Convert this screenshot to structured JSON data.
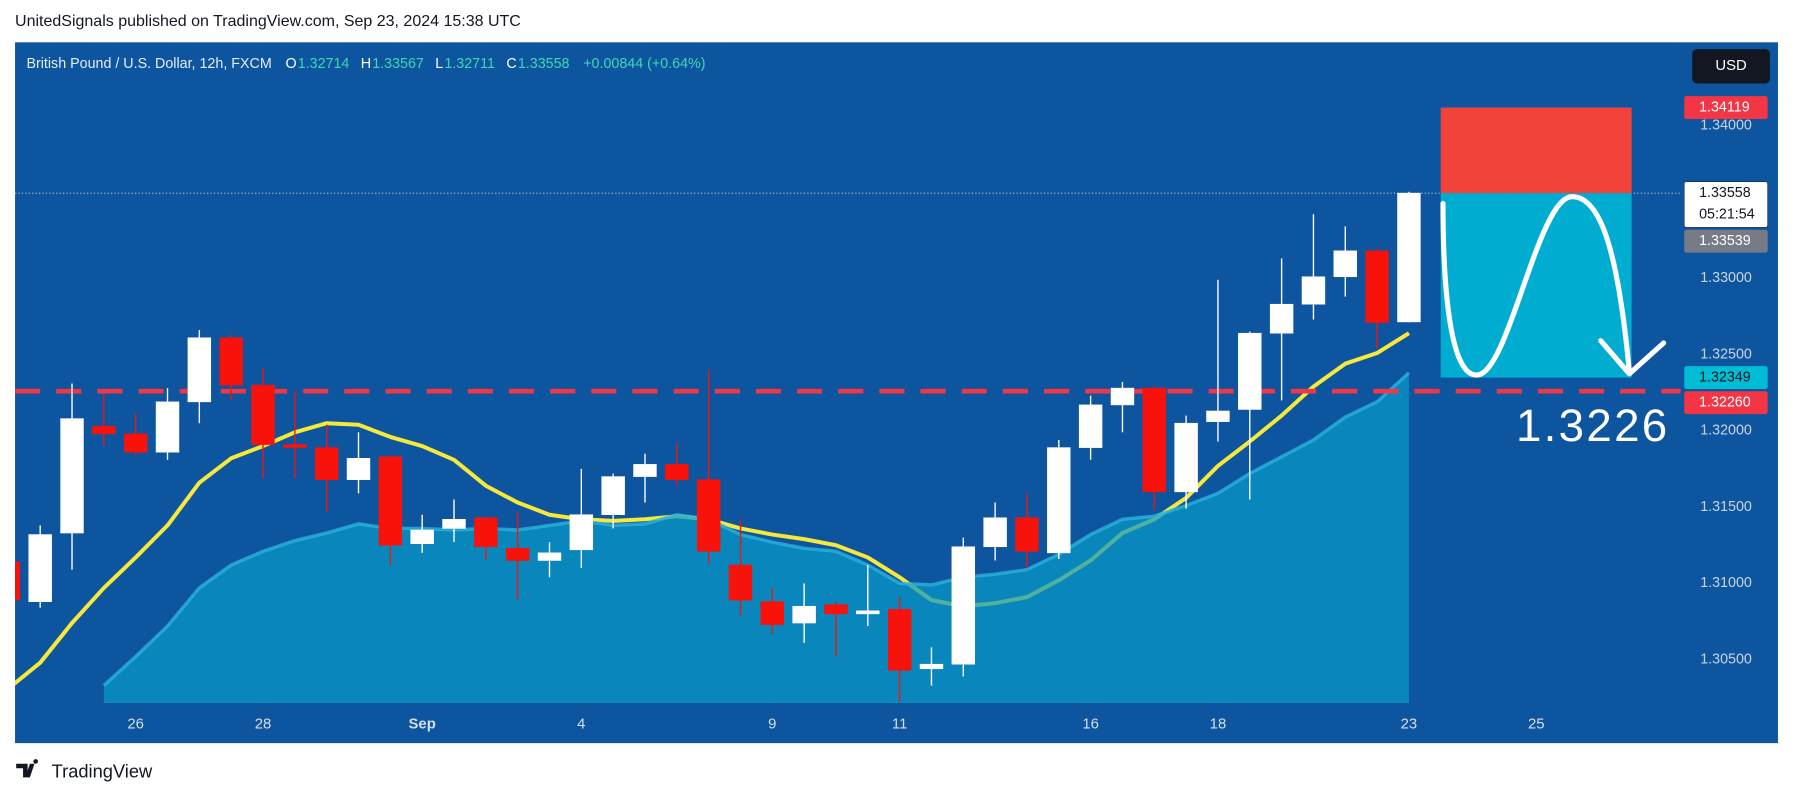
{
  "header": {
    "text": "UnitedSignals published on TradingView.com, Sep 23, 2024 15:38 UTC"
  },
  "footer": {
    "brand": "TradingView"
  },
  "chart_data": {
    "type": "candlestick",
    "legend": {
      "symbol": "British Pound / U.S. Dollar, 12h, FXCM",
      "items": [
        {
          "label": "O",
          "value": "1.32714"
        },
        {
          "label": "H",
          "value": "1.33567"
        },
        {
          "label": "L",
          "value": "1.32711"
        },
        {
          "label": "C",
          "value": "1.33558"
        }
      ],
      "change": "+0.00844 (+0.64%)"
    },
    "currency": "USD",
    "open": [
      1.3114,
      1.3088,
      1.3133,
      1.3203,
      1.3198,
      1.3186,
      1.3219,
      1.3261,
      1.323,
      1.3191,
      1.3189,
      1.3168,
      1.3183,
      1.3126,
      1.3136,
      1.3143,
      1.3123,
      1.3115,
      1.3122,
      1.3145,
      1.317,
      1.3178,
      1.3168,
      1.3112,
      1.3088,
      1.3074,
      1.3086,
      1.308,
      1.3083,
      1.3044,
      1.3047,
      1.3124,
      1.3143,
      1.312,
      1.3189,
      1.3217,
      1.3228,
      1.316,
      1.3206,
      1.3214,
      1.3264,
      1.3283,
      1.3301,
      1.3318,
      1.32714
    ],
    "high": [
      1.3117,
      1.3138,
      1.3231,
      1.3224,
      1.3211,
      1.3228,
      1.3266,
      1.3263,
      1.3241,
      1.3226,
      1.3204,
      1.3199,
      1.3184,
      1.3145,
      1.3155,
      1.3144,
      1.3147,
      1.3127,
      1.3175,
      1.3172,
      1.3185,
      1.3192,
      1.324,
      1.3142,
      1.3097,
      1.31,
      1.3088,
      1.3112,
      1.3091,
      1.3058,
      1.313,
      1.3153,
      1.3159,
      1.3194,
      1.3223,
      1.3232,
      1.3229,
      1.321,
      1.3299,
      1.3265,
      1.3313,
      1.3342,
      1.3334,
      1.3319,
      1.33567
    ],
    "low": [
      1.3085,
      1.3084,
      1.3109,
      1.319,
      1.3184,
      1.3181,
      1.3205,
      1.322,
      1.3169,
      1.3169,
      1.3147,
      1.3159,
      1.3112,
      1.312,
      1.3127,
      1.3115,
      1.3089,
      1.3104,
      1.311,
      1.3136,
      1.3153,
      1.3164,
      1.3113,
      1.3079,
      1.3067,
      1.3061,
      1.3052,
      1.3072,
      1.3023,
      1.3033,
      1.3039,
      1.3115,
      1.311,
      1.3116,
      1.3181,
      1.3199,
      1.3148,
      1.3149,
      1.3193,
      1.3155,
      1.322,
      1.3273,
      1.3288,
      1.3254,
      1.32711
    ],
    "close": [
      1.3089,
      1.3132,
      1.3208,
      1.3198,
      1.3186,
      1.3219,
      1.3261,
      1.323,
      1.3191,
      1.3189,
      1.3168,
      1.3182,
      1.3125,
      1.3135,
      1.3142,
      1.3124,
      1.3115,
      1.312,
      1.3145,
      1.317,
      1.3178,
      1.3168,
      1.3121,
      1.3089,
      1.3073,
      1.3085,
      1.308,
      1.3082,
      1.3043,
      1.3047,
      1.3124,
      1.3143,
      1.3121,
      1.3189,
      1.3217,
      1.3228,
      1.316,
      1.3205,
      1.3213,
      1.3264,
      1.3283,
      1.3301,
      1.3318,
      1.3271,
      1.33558
    ],
    "up_color": "#ffffff",
    "down_color": "#f7120c",
    "moving_averages": [
      {
        "color": "#f7e83c",
        "fill": false,
        "values": [
          1.3031,
          1.3048,
          1.3074,
          1.3097,
          1.3117,
          1.3138,
          1.3166,
          1.3182,
          1.319,
          1.3199,
          1.3205,
          1.3204,
          1.3196,
          1.319,
          1.3181,
          1.3164,
          1.3153,
          1.3145,
          1.3142,
          1.3141,
          1.3142,
          1.3144,
          1.3142,
          1.3136,
          1.3132,
          1.3129,
          1.3125,
          1.3117,
          1.3104,
          1.3089,
          1.3085,
          1.3087,
          1.3091,
          1.3102,
          1.3115,
          1.3133,
          1.3142,
          1.3156,
          1.3177,
          1.3193,
          1.321,
          1.3229,
          1.3244,
          1.3251,
          1.3264
        ]
      },
      {
        "color": "#089bc8",
        "fill": true,
        "values": [
          null,
          null,
          null,
          1.3033,
          1.3052,
          1.3072,
          1.3097,
          1.3112,
          1.3121,
          1.3128,
          1.3133,
          1.3139,
          1.3136,
          1.3136,
          1.3135,
          1.3136,
          1.3135,
          1.3138,
          1.3141,
          1.3138,
          1.3139,
          1.3145,
          1.3142,
          1.3132,
          1.3127,
          1.3123,
          1.3121,
          1.3112,
          1.31,
          1.3099,
          1.3104,
          1.3106,
          1.3109,
          1.3119,
          1.3132,
          1.3142,
          1.3144,
          1.3151,
          1.3159,
          1.3172,
          1.3183,
          1.3194,
          1.3209,
          1.3219,
          1.3238
        ]
      }
    ],
    "xlim": [
      0.21,
      52.54
    ],
    "xticks": [
      {
        "value": 4,
        "label": "26"
      },
      {
        "value": 8,
        "label": "28"
      },
      {
        "value": 13,
        "label": "Sep"
      },
      {
        "value": 18,
        "label": "4"
      },
      {
        "value": 24,
        "label": "9"
      },
      {
        "value": 28,
        "label": "11"
      },
      {
        "value": 34,
        "label": "16"
      },
      {
        "value": 38,
        "label": "18"
      },
      {
        "value": 44,
        "label": "23"
      },
      {
        "value": 48,
        "label": "25"
      }
    ],
    "ylim": [
      1.30215,
      1.34547
    ],
    "yticks": [
      {
        "value": 1.305,
        "label": "1.30500"
      },
      {
        "value": 1.31,
        "label": "1.31000"
      },
      {
        "value": 1.315,
        "label": "1.31500"
      },
      {
        "value": 1.32,
        "label": "1.32000"
      },
      {
        "value": 1.325,
        "label": "1.32500"
      },
      {
        "value": 1.33,
        "label": "1.33000"
      },
      {
        "value": 1.34,
        "label": "1.34000"
      }
    ],
    "grid": false,
    "support": {
      "value": 1.3226,
      "label": "1.3226",
      "color": "#f23645"
    },
    "position": {
      "stop": 1.34119,
      "entry": 1.33558,
      "target": 1.32349,
      "stop_color": "#f2433b",
      "target_color": "#00acd0"
    },
    "price_labels": [
      {
        "value": 1.34119,
        "label": "1.34119",
        "color": "#f23645",
        "text_color": "#ffffff"
      },
      {
        "value": 1.33558,
        "label": "1.33558",
        "color": "#ffffff",
        "text_color": "#131722",
        "countdown": "05:21:54"
      },
      {
        "value": 1.33539,
        "label": "1.33539",
        "color": "#787b86",
        "text_color": "#ffffff"
      },
      {
        "value": 1.32349,
        "label": "1.32349",
        "color": "#00bcd4",
        "text_color": "#131722"
      },
      {
        "value": 1.3226,
        "label": "1.32260",
        "color": "#f23645",
        "text_color": "#ffffff"
      }
    ]
  }
}
